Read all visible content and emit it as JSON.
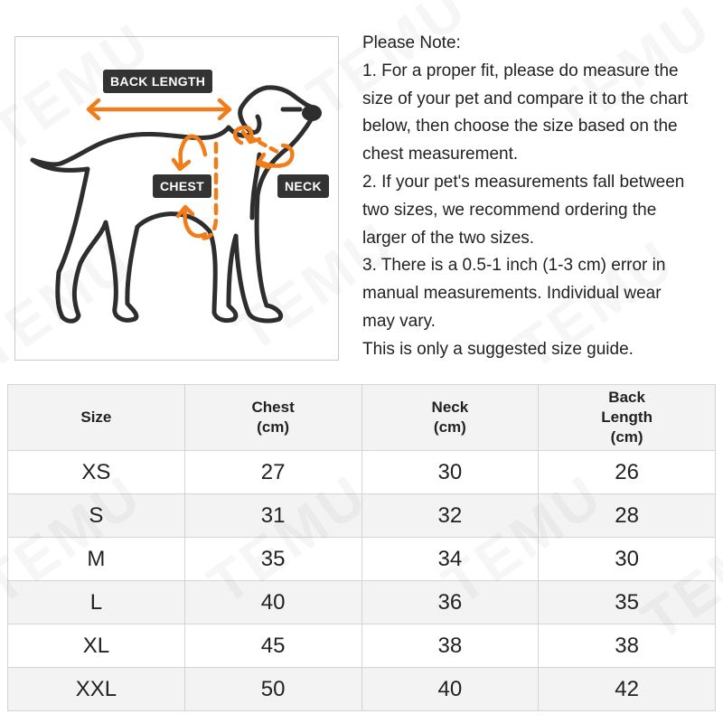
{
  "watermark": "TEMU",
  "figure": {
    "labels": {
      "back_length": "BACK LENGTH",
      "chest": "CHEST",
      "neck": "NECK"
    },
    "colors": {
      "arrow": "#f07d1a",
      "outline": "#2e2e2e",
      "tag_bg": "#333333"
    }
  },
  "notes": {
    "lines": [
      "Please Note:",
      "1. For a proper fit, please do measure the",
      "size of your pet and compare it to the chart",
      "below, then choose the size based on the",
      "chest measurement.",
      "2. If your pet's measurements fall between",
      "two sizes, we recommend ordering the",
      "larger of the two sizes.",
      "3. There is a 0.5-1 inch (1-3 cm) error in",
      "manual measurements. Individual wear",
      "may vary.",
      "This is only a suggested size guide."
    ]
  },
  "table": {
    "headers": [
      [
        "Size"
      ],
      [
        "Chest",
        "(cm)"
      ],
      [
        "Neck",
        "(cm)"
      ],
      [
        "Back",
        "Length",
        "(cm)"
      ]
    ],
    "rows": [
      [
        "XS",
        "27",
        "30",
        "26"
      ],
      [
        "S",
        "31",
        "32",
        "28"
      ],
      [
        "M",
        "35",
        "34",
        "30"
      ],
      [
        "L",
        "40",
        "36",
        "35"
      ],
      [
        "XL",
        "45",
        "38",
        "38"
      ],
      [
        "XXL",
        "50",
        "40",
        "42"
      ]
    ]
  }
}
